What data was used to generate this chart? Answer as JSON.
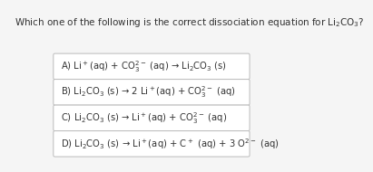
{
  "title": "Which one of the following is the correct dissociation equation for Li$_2$CO$_3$?",
  "title_fontsize": 7.5,
  "background_color": "#f5f5f5",
  "options": [
    {
      "label": "A)",
      "math": "Li$^+$(aq) + CO$_3^{2-}$ (aq) → Li$_2$CO$_3$ (s)"
    },
    {
      "label": "B)",
      "math": "Li$_2$CO$_3$ (s) → 2 Li$^+$(aq) + CO$_3^{2-}$ (aq)"
    },
    {
      "label": "C)",
      "math": "Li$_2$CO$_3$ (s) → Li$^+$(aq) + CO$_3^{2-}$ (aq)"
    },
    {
      "label": "D)",
      "math": "Li$_2$CO$_3$ (s) → Li$^+$(aq) + C$^+$ (aq) + 3 O$^{2-}$ (aq)"
    }
  ],
  "box_facecolor": "#ffffff",
  "box_edgecolor": "#bbbbbb",
  "text_color": "#333333",
  "option_fontsize": 7.2
}
